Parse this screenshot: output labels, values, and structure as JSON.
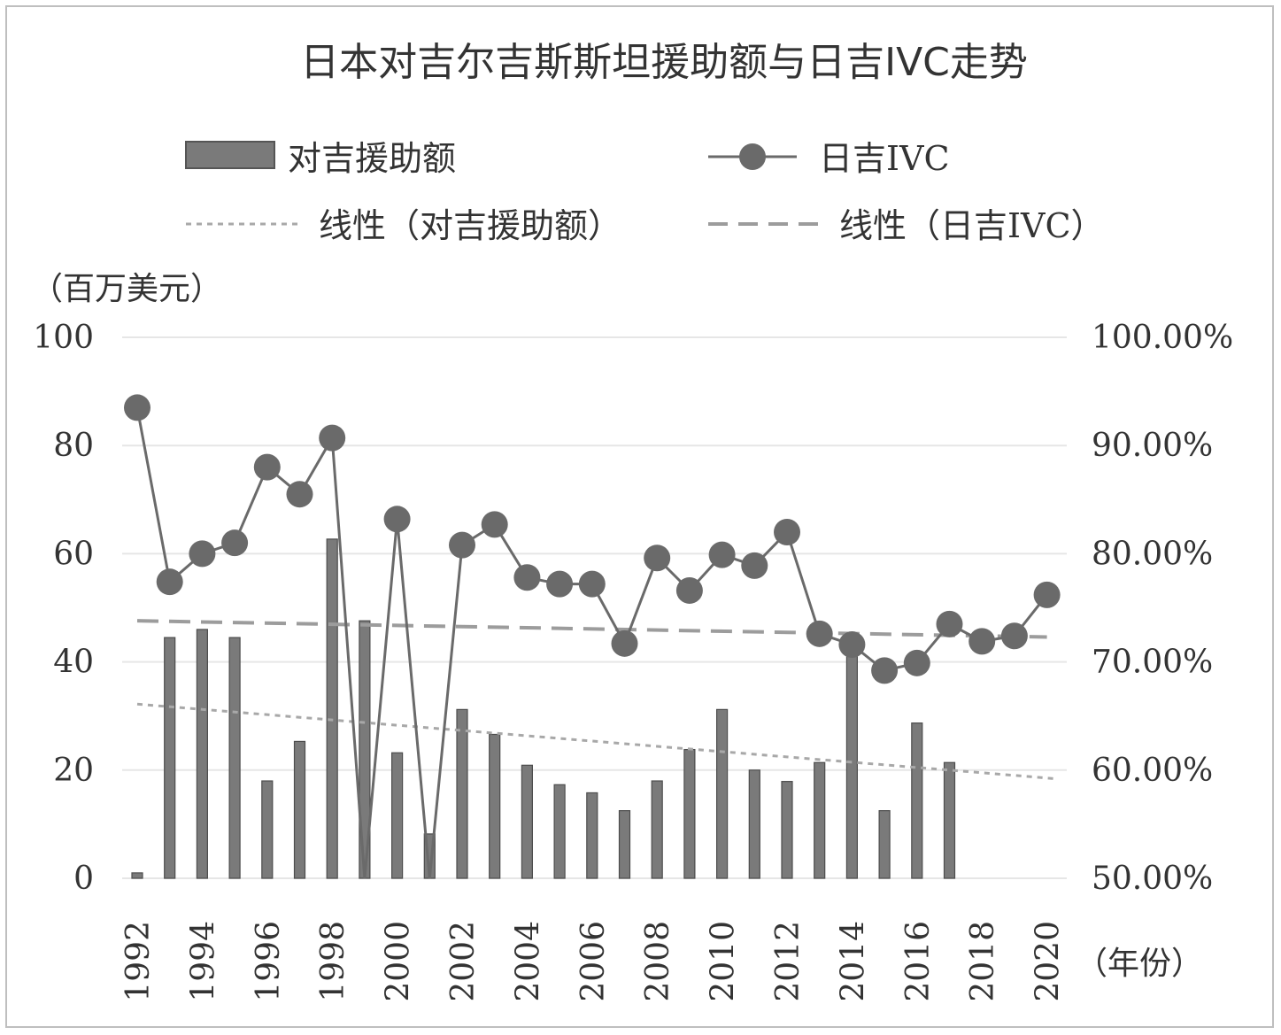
{
  "chart_data": {
    "type": "bar",
    "title": "日本对吉尔吉斯斯坦援助额与日吉IVC走势",
    "left_unit_label": "（百万美元）",
    "x_unit_label": "（年份）",
    "years": [
      1992,
      1993,
      1994,
      1995,
      1996,
      1997,
      1998,
      1999,
      2000,
      2001,
      2002,
      2003,
      2004,
      2005,
      2006,
      2007,
      2008,
      2009,
      2010,
      2011,
      2012,
      2013,
      2014,
      2015,
      2016,
      2017,
      2018,
      2019,
      2020
    ],
    "x_tick_labels": [
      "1992",
      "1994",
      "1996",
      "1998",
      "2000",
      "2002",
      "2004",
      "2006",
      "2008",
      "2010",
      "2012",
      "2014",
      "2016",
      "2018",
      "2020"
    ],
    "y_left": {
      "min": 0,
      "max": 100,
      "ticks": [
        "0",
        "20",
        "40",
        "60",
        "80",
        "100"
      ]
    },
    "y_right": {
      "min": 0.5,
      "max": 1.0,
      "ticks": [
        "50.00%",
        "60.00%",
        "70.00%",
        "80.00%",
        "90.00%",
        "100.00%"
      ]
    },
    "series": [
      {
        "name": "对吉援助额",
        "kind": "bar",
        "axis": "left",
        "color": "#7a7a7a",
        "values": [
          1,
          44.5,
          46,
          44.5,
          18,
          25.3,
          62.7,
          47.6,
          23.2,
          8.2,
          31.2,
          26.6,
          20.9,
          17.3,
          15.8,
          12.5,
          18,
          23.8,
          31.2,
          20,
          17.9,
          21.4,
          42.8,
          12.5,
          28.7,
          21.4,
          null,
          null,
          null
        ]
      },
      {
        "name": "日吉IVC",
        "kind": "line",
        "axis": "right",
        "color": "#6a6a6a",
        "values": [
          0.935,
          0.774,
          0.8,
          0.81,
          0.88,
          0.855,
          0.907,
          0.5,
          0.832,
          0.5,
          0.808,
          0.827,
          0.778,
          0.772,
          0.772,
          0.717,
          0.796,
          0.766,
          0.799,
          0.789,
          0.82,
          0.726,
          0.716,
          0.692,
          0.699,
          0.735,
          0.719,
          0.724,
          0.762
        ]
      },
      {
        "name": "线性（对吉援助额）",
        "kind": "trend",
        "axis": "left",
        "color": "#a8a8a8",
        "values": [
          32.2,
          18.4
        ]
      },
      {
        "name": "线性（日吉IVC）",
        "kind": "trend",
        "axis": "right",
        "color": "#9c9c9c",
        "values": [
          0.738,
          0.723
        ]
      }
    ],
    "grid": true,
    "legend": "top"
  }
}
